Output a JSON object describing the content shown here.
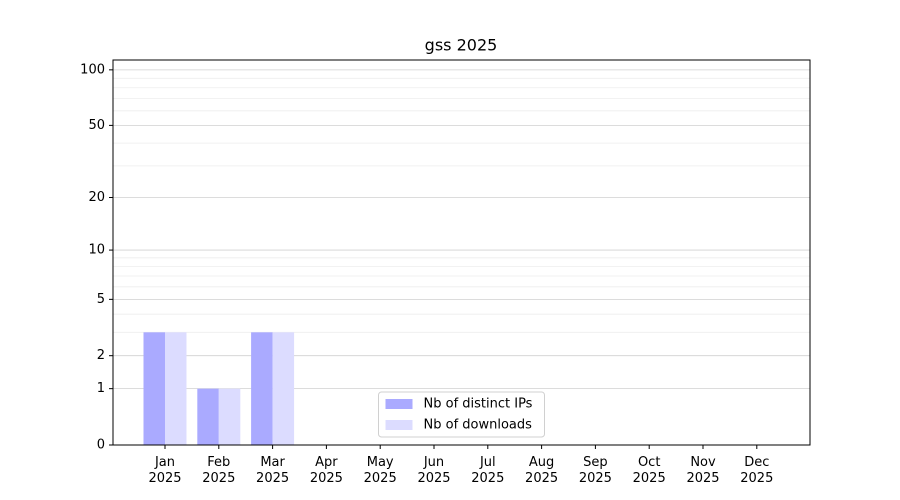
{
  "chart_data": {
    "type": "bar",
    "title": "gss 2025",
    "categories": [
      [
        "Jan",
        "2025"
      ],
      [
        "Feb",
        "2025"
      ],
      [
        "Mar",
        "2025"
      ],
      [
        "Apr",
        "2025"
      ],
      [
        "May",
        "2025"
      ],
      [
        "Jun",
        "2025"
      ],
      [
        "Jul",
        "2025"
      ],
      [
        "Aug",
        "2025"
      ],
      [
        "Sep",
        "2025"
      ],
      [
        "Oct",
        "2025"
      ],
      [
        "Nov",
        "2025"
      ],
      [
        "Dec",
        "2025"
      ]
    ],
    "series": [
      {
        "name": "Nb of distinct IPs",
        "color": "#aaaaff",
        "values": [
          3,
          1,
          3,
          0,
          0,
          0,
          0,
          0,
          0,
          0,
          0,
          0
        ]
      },
      {
        "name": "Nb of downloads",
        "color": "#dcdcff",
        "values": [
          3,
          1,
          3,
          0,
          0,
          0,
          0,
          0,
          0,
          0,
          0,
          0
        ]
      }
    ],
    "yscale": "log1p",
    "ylim": [
      0,
      113
    ],
    "yticks": [
      0,
      1,
      2,
      5,
      10,
      20,
      50,
      100
    ],
    "minor_yticks": [
      3,
      4,
      6,
      7,
      8,
      9,
      30,
      40,
      60,
      70,
      80,
      90
    ],
    "grid": true,
    "legend": "lower center"
  }
}
